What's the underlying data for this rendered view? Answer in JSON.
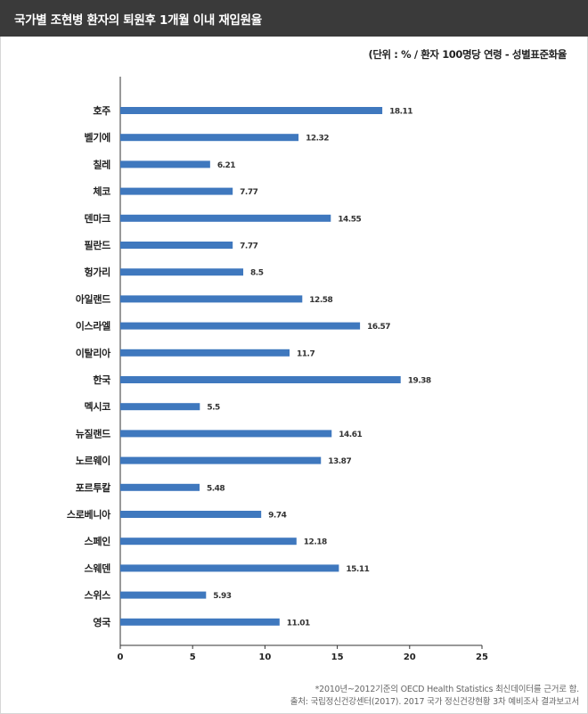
{
  "title": "국가별 조현병 환자의 퇴원후 1개월 이내 재입원율",
  "unit_note": "(단위 : % / 환자 100명당 연령 - 성별표준화율",
  "footnotes": [
    "*2010년~2012기준의 OECD Health Statistics 최신데이터를 근거로 함.",
    "출처: 국립정신건강센터(2017). 2017 국가 정신건강현황 3차 예비조사 결과보고서"
  ],
  "colors": {
    "bar": "#3f78be",
    "axis": "#333333",
    "title_bg": "#3a3a3a"
  },
  "chart_data": {
    "type": "bar",
    "orientation": "horizontal",
    "categories": [
      "호주",
      "벨기에",
      "칠레",
      "체코",
      "덴마크",
      "필란드",
      "헝가리",
      "아일랜드",
      "이스라엘",
      "이탈리아",
      "한국",
      "멕시코",
      "뉴질랜드",
      "노르웨이",
      "포르투칼",
      "스로베니아",
      "스페인",
      "스웨덴",
      "스위스",
      "영국"
    ],
    "values": [
      18.11,
      12.32,
      6.21,
      7.77,
      14.55,
      7.77,
      8.5,
      12.58,
      16.57,
      11.7,
      19.38,
      5.5,
      14.61,
      13.87,
      5.48,
      9.74,
      12.18,
      15.11,
      5.93,
      11.01
    ],
    "value_labels": [
      "18.11",
      "12.32",
      "6.21",
      "7.77",
      "14.55",
      "7.77",
      "8.5",
      "12.58",
      "16.57",
      "11.7",
      "19.38",
      "5.5",
      "14.61",
      "13.87",
      "5.48",
      "9.74",
      "12.18",
      "15.11",
      "5.93",
      "11.01"
    ],
    "xlim": [
      0,
      25
    ],
    "xticks": [
      "0",
      "5",
      "10",
      "15",
      "20",
      "25"
    ],
    "grid": false,
    "legend": "none"
  }
}
